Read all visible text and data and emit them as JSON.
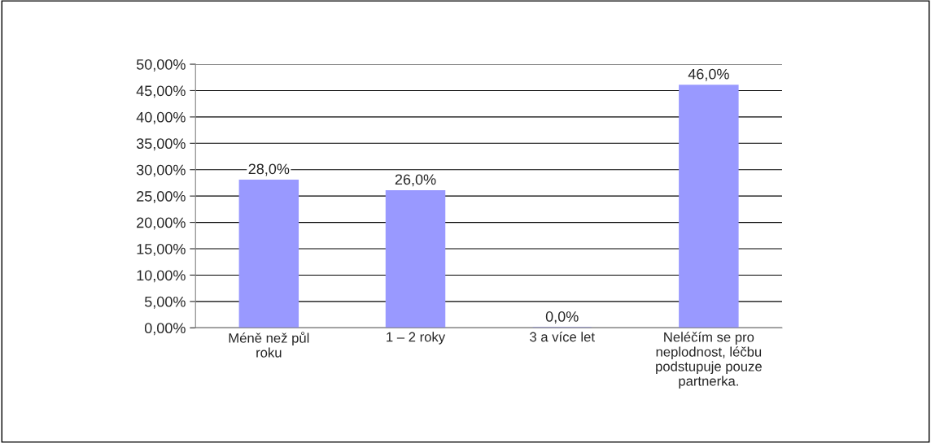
{
  "chart_data": {
    "type": "bar",
    "categories": [
      "Méně než půl\nroku",
      "1 – 2 roky",
      "3 a více let",
      "Neléčím se pro\nneplodnost, léčbu\npodstupuje pouze\npartnerka."
    ],
    "values": [
      28,
      26,
      0,
      46
    ],
    "value_labels": [
      "28,0%",
      "26,0%",
      "0,0%",
      "46,0%"
    ],
    "color": "#9999ff",
    "ylim": [
      0,
      50
    ],
    "yticks": [
      {
        "value": 0,
        "label": "0,00%"
      },
      {
        "value": 5,
        "label": "5,00%"
      },
      {
        "value": 10,
        "label": "10,00%"
      },
      {
        "value": 15,
        "label": "15,00%"
      },
      {
        "value": 20,
        "label": "20,00%"
      },
      {
        "value": 25,
        "label": "25,00%"
      },
      {
        "value": 30,
        "label": "30,00%"
      },
      {
        "value": 35,
        "label": "35,00%"
      },
      {
        "value": 40,
        "label": "40,00%"
      },
      {
        "value": 45,
        "label": "45,00%"
      },
      {
        "value": 50,
        "label": "50,00%"
      }
    ],
    "grid": "y"
  }
}
